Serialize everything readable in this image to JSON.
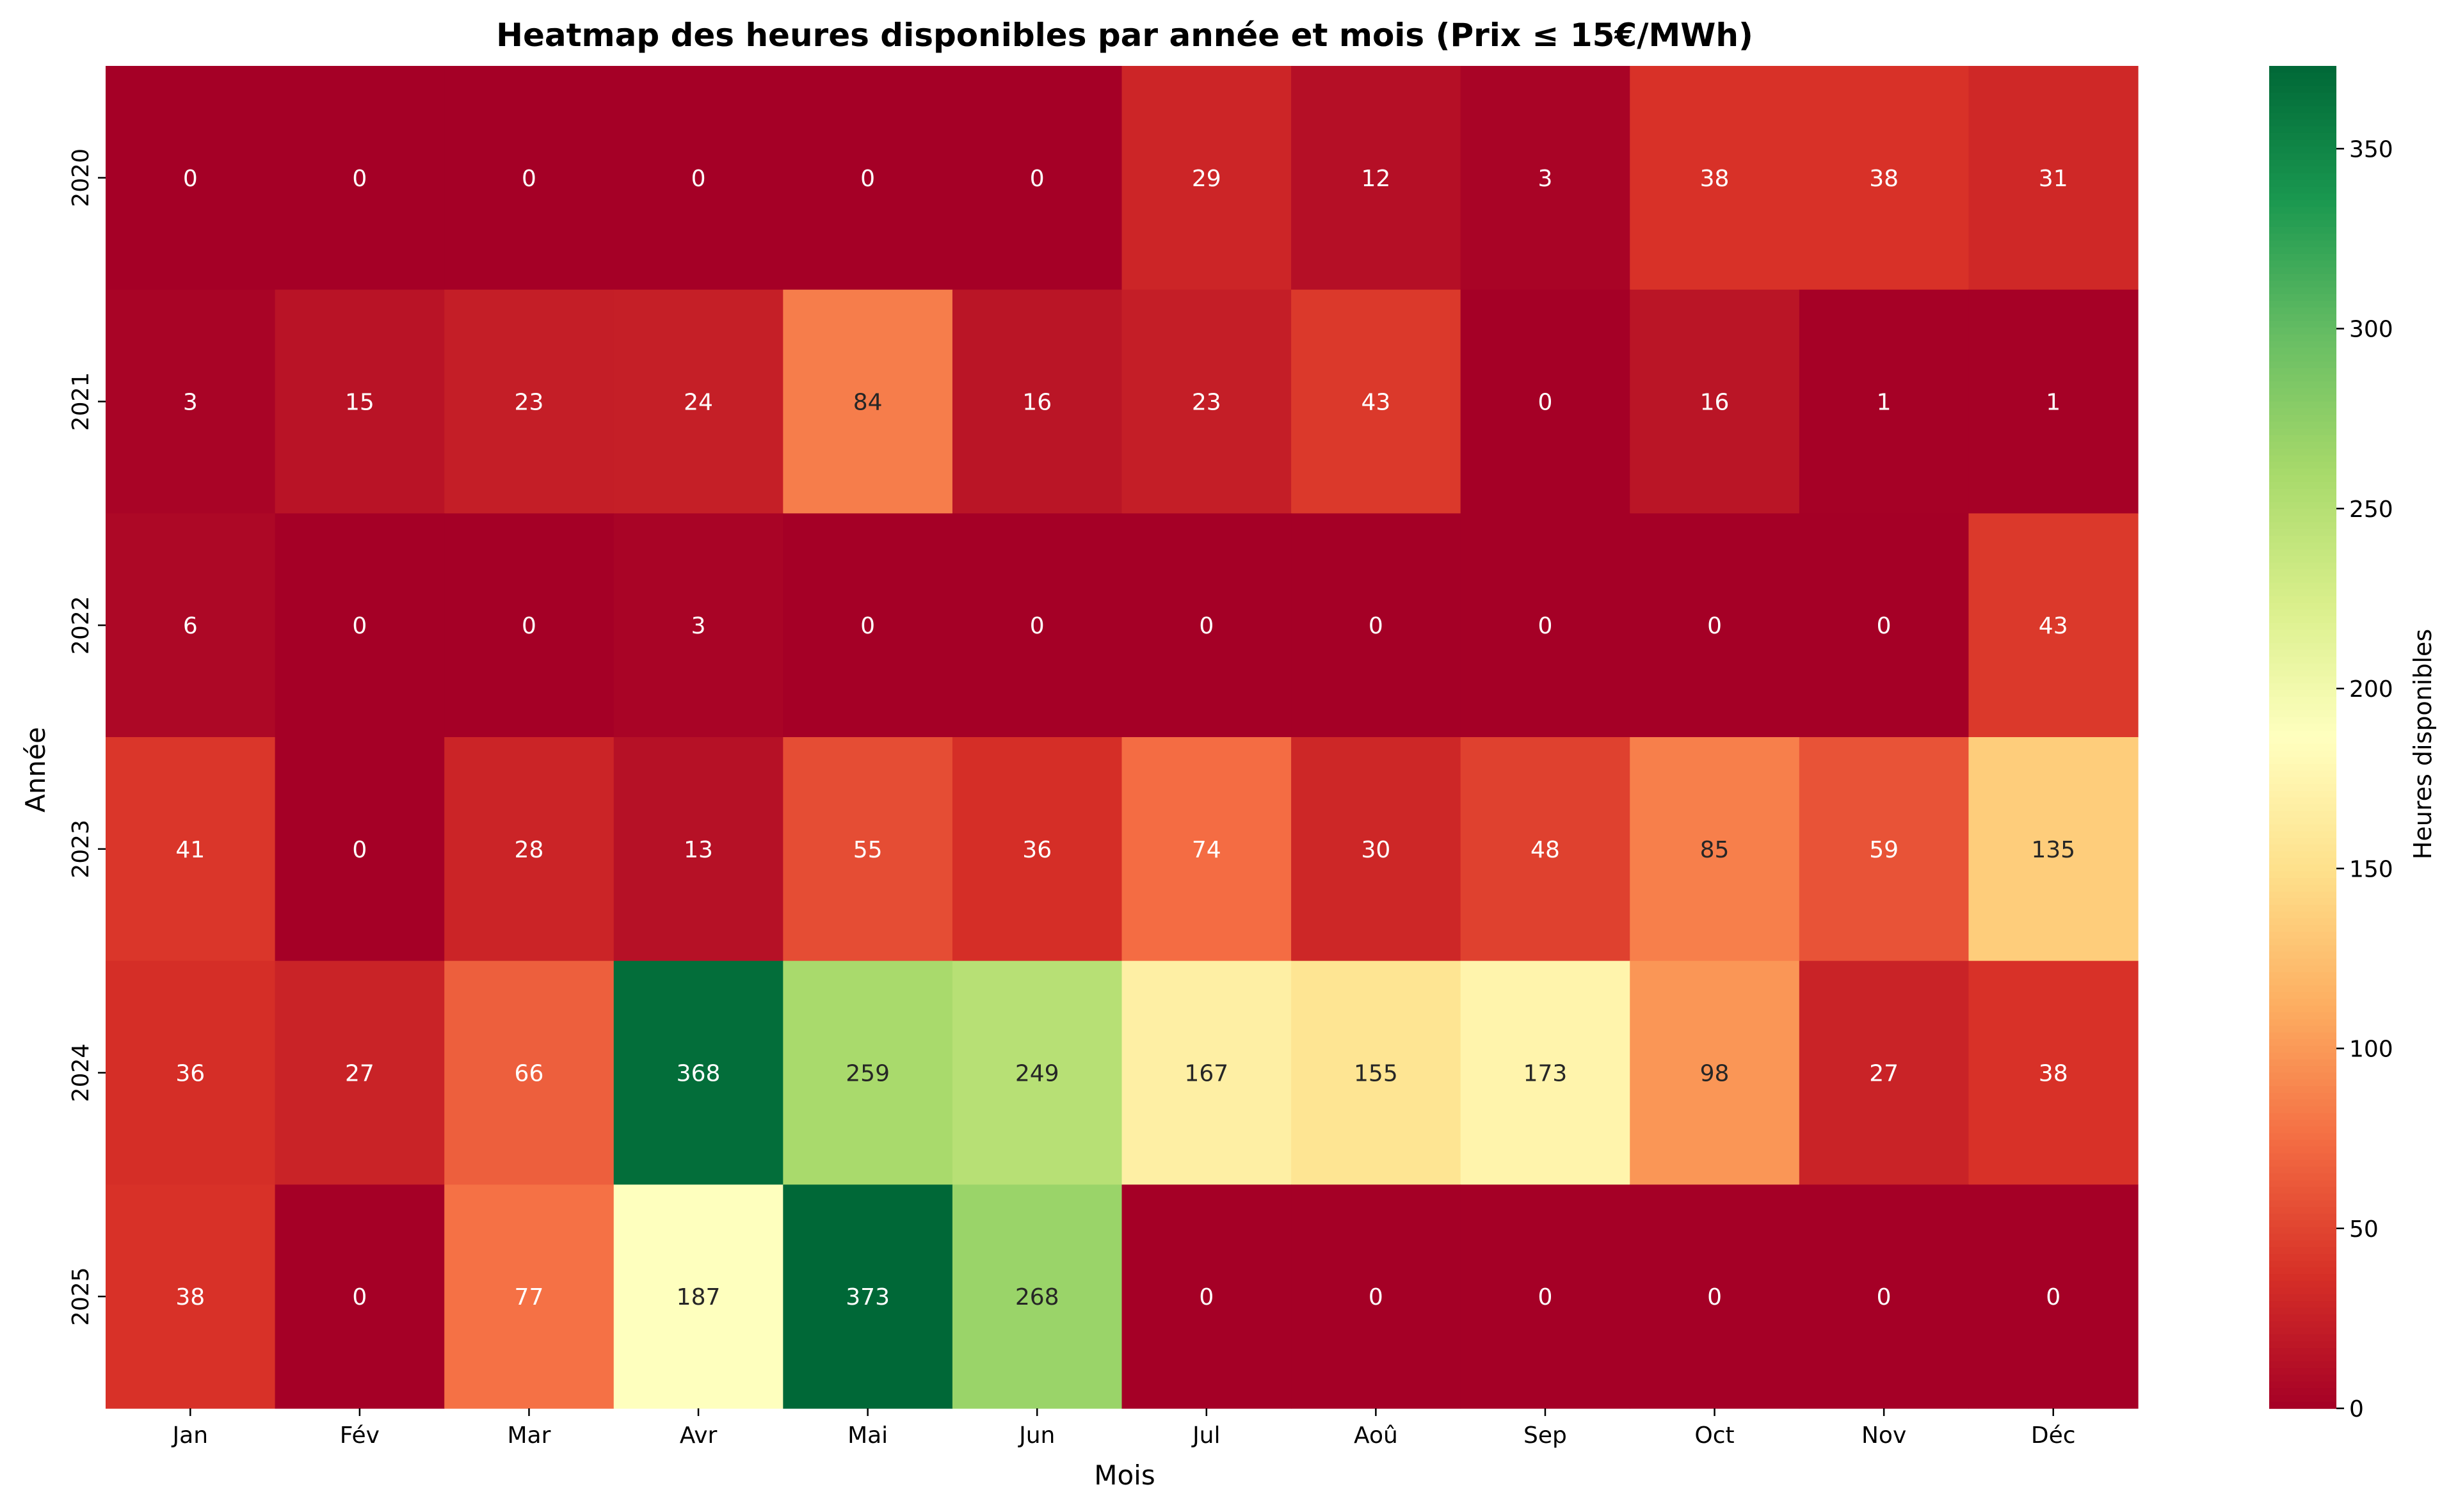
{
  "chart_data": {
    "type": "heatmap",
    "title": "Heatmap des heures disponibles par année et mois (Prix ≤ 15€/MWh)",
    "xlabel": "Mois",
    "ylabel": "Année",
    "x_categories": [
      "Jan",
      "Fév",
      "Mar",
      "Avr",
      "Mai",
      "Jun",
      "Jul",
      "Aoû",
      "Sep",
      "Oct",
      "Nov",
      "Déc"
    ],
    "y_categories": [
      "2020",
      "2021",
      "2022",
      "2023",
      "2024",
      "2025"
    ],
    "values": [
      [
        0,
        0,
        0,
        0,
        0,
        0,
        29,
        12,
        3,
        38,
        38,
        31
      ],
      [
        3,
        15,
        23,
        24,
        84,
        16,
        23,
        43,
        0,
        16,
        1,
        1
      ],
      [
        6,
        0,
        0,
        3,
        0,
        0,
        0,
        0,
        0,
        0,
        0,
        43
      ],
      [
        41,
        0,
        28,
        13,
        55,
        36,
        74,
        30,
        48,
        85,
        59,
        135
      ],
      [
        36,
        27,
        66,
        368,
        259,
        249,
        167,
        155,
        173,
        98,
        27,
        38
      ],
      [
        38,
        0,
        77,
        187,
        373,
        268,
        0,
        0,
        0,
        0,
        0,
        0
      ]
    ],
    "colormap": "RdYlGn",
    "vmin": 0,
    "vmax": 373,
    "colorbar": {
      "label": "Heures disponibles",
      "ticks": [
        0,
        50,
        100,
        150,
        200,
        250,
        300,
        350
      ]
    },
    "grid": false
  }
}
